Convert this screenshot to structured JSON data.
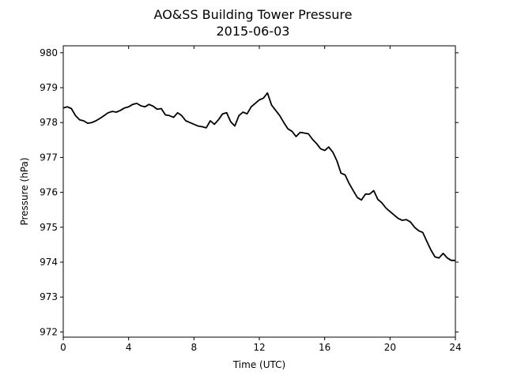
{
  "chart_data": {
    "type": "line",
    "title": "AO&SS Building Tower Pressure",
    "subtitle": "2015-06-03",
    "xlabel": "Time (UTC)",
    "ylabel": "Pressure (hPa)",
    "xlim": [
      0,
      24
    ],
    "ylim": [
      971.85,
      980.2
    ],
    "xticks": [
      0,
      4,
      8,
      12,
      16,
      20,
      24
    ],
    "yticks": [
      972,
      973,
      974,
      975,
      976,
      977,
      978,
      979,
      980
    ],
    "grid": false,
    "series": [
      {
        "color": "#000000",
        "x": [
          0,
          0.25,
          0.5,
          0.75,
          1.0,
          1.25,
          1.5,
          1.75,
          2.0,
          2.25,
          2.5,
          2.75,
          3.0,
          3.25,
          3.5,
          3.75,
          4.0,
          4.25,
          4.5,
          4.75,
          5.0,
          5.25,
          5.5,
          5.75,
          6.0,
          6.25,
          6.5,
          6.75,
          7.0,
          7.25,
          7.5,
          7.75,
          8.0,
          8.25,
          8.5,
          8.75,
          9.0,
          9.25,
          9.5,
          9.75,
          10.0,
          10.25,
          10.5,
          10.75,
          11.0,
          11.25,
          11.5,
          11.75,
          12.0,
          12.25,
          12.5,
          12.75,
          13.0,
          13.25,
          13.5,
          13.75,
          14.0,
          14.25,
          14.5,
          14.75,
          15.0,
          15.25,
          15.5,
          15.75,
          16.0,
          16.25,
          16.5,
          16.75,
          17.0,
          17.25,
          17.5,
          17.75,
          18.0,
          18.25,
          18.5,
          18.75,
          19.0,
          19.25,
          19.5,
          19.75,
          20.0,
          20.25,
          20.5,
          20.75,
          21.0,
          21.25,
          21.5,
          21.75,
          22.0,
          22.25,
          22.5,
          22.75,
          23.0,
          23.25,
          23.5,
          23.75,
          24.0
        ],
        "y": [
          978.42,
          978.45,
          978.4,
          978.2,
          978.08,
          978.05,
          977.98,
          978.0,
          978.05,
          978.12,
          978.2,
          978.28,
          978.32,
          978.3,
          978.35,
          978.42,
          978.45,
          978.52,
          978.55,
          978.48,
          978.45,
          978.52,
          978.47,
          978.38,
          978.4,
          978.22,
          978.2,
          978.15,
          978.28,
          978.2,
          978.05,
          978.0,
          977.95,
          977.9,
          977.88,
          977.85,
          978.05,
          977.95,
          978.08,
          978.25,
          978.28,
          978.02,
          977.9,
          978.2,
          978.3,
          978.25,
          978.45,
          978.55,
          978.65,
          978.7,
          978.85,
          978.5,
          978.35,
          978.2,
          978.0,
          977.82,
          977.75,
          977.6,
          977.72,
          977.7,
          977.68,
          977.52,
          977.4,
          977.25,
          977.2,
          977.3,
          977.15,
          976.9,
          976.55,
          976.5,
          976.25,
          976.05,
          975.85,
          975.78,
          975.95,
          975.95,
          976.05,
          975.8,
          975.7,
          975.55,
          975.45,
          975.35,
          975.25,
          975.2,
          975.22,
          975.15,
          975.0,
          974.9,
          974.85,
          974.6,
          974.35,
          974.15,
          974.12,
          974.25,
          974.12,
          974.05,
          974.05
        ]
      }
    ]
  }
}
